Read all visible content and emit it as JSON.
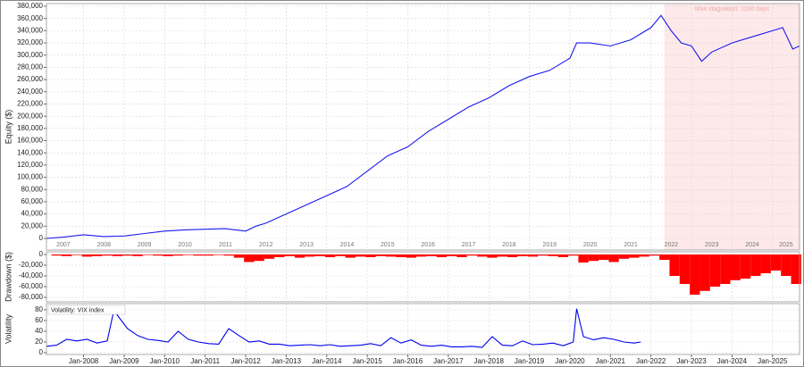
{
  "chart_data": [
    {
      "type": "line",
      "y_label": "Equity ($)",
      "xlim": [
        "2007-02",
        "2025-09"
      ],
      "ylim": [
        0,
        380000
      ],
      "yticks": [
        0,
        {
          "value": 20000,
          "label": "20,000"
        },
        {
          "value": 40000,
          "label": "40,000"
        },
        {
          "value": 60000,
          "label": "60,000"
        },
        {
          "value": 80000,
          "label": "80,000"
        },
        {
          "value": 100000,
          "label": "100,000"
        },
        {
          "value": 120000,
          "label": "120,000"
        },
        {
          "value": 140000,
          "label": "140,000"
        },
        {
          "value": 160000,
          "label": "160,000"
        },
        {
          "value": 180000,
          "label": "180,000"
        },
        {
          "value": 200000,
          "label": "200,000"
        },
        {
          "value": 220000,
          "label": "220,000"
        },
        {
          "value": 240000,
          "label": "240,000"
        },
        {
          "value": 260000,
          "label": "260,000"
        },
        {
          "value": 280000,
          "label": "280,000"
        },
        {
          "value": 300000,
          "label": "300,000"
        },
        {
          "value": 320000,
          "label": "320,000"
        },
        {
          "value": 340000,
          "label": "340,000"
        },
        {
          "value": 360000,
          "label": "360,000"
        },
        {
          "value": 380000,
          "label": "380,000"
        }
      ],
      "xticks": [
        {
          "value": "2007-07",
          "label": "2007"
        },
        {
          "value": "2008-07",
          "label": "2008"
        },
        {
          "value": "2009-07",
          "label": "2009"
        },
        {
          "value": "2010-07",
          "label": "2010"
        },
        {
          "value": "2011-07",
          "label": "2011"
        },
        {
          "value": "2012-07",
          "label": "2012"
        },
        {
          "value": "2013-07",
          "label": "2013"
        },
        {
          "value": "2014-07",
          "label": "2014"
        },
        {
          "value": "2015-07",
          "label": "2015"
        },
        {
          "value": "2016-07",
          "label": "2016"
        },
        {
          "value": "2017-07",
          "label": "2017"
        },
        {
          "value": "2018-07",
          "label": "2018"
        },
        {
          "value": "2019-07",
          "label": "2019"
        },
        {
          "value": "2020-07",
          "label": "2020"
        },
        {
          "value": "2021-07",
          "label": "2021"
        },
        {
          "value": "2022-07",
          "label": "2022"
        },
        {
          "value": "2023-07",
          "label": "2023"
        },
        {
          "value": "2024-07",
          "label": "2024"
        },
        {
          "value": "2025-05",
          "label": "2025"
        }
      ],
      "stagnation": {
        "start": "2022-05",
        "end": "2025-09",
        "label": "Max stagnation: 1100 days",
        "color": "#fde9e9"
      },
      "series": [
        {
          "color": "#1a1aee",
          "x": [
            "2007-02",
            "2007-07",
            "2008-01",
            "2008-07",
            "2009-01",
            "2009-07",
            "2010-01",
            "2010-07",
            "2011-01",
            "2011-07",
            "2012-01",
            "2012-04",
            "2012-07",
            "2013-01",
            "2013-07",
            "2014-01",
            "2014-07",
            "2015-01",
            "2015-07",
            "2016-01",
            "2016-07",
            "2017-01",
            "2017-07",
            "2018-01",
            "2018-07",
            "2019-01",
            "2019-07",
            "2020-01",
            "2020-03",
            "2020-07",
            "2021-01",
            "2021-07",
            "2022-01",
            "2022-04",
            "2022-07",
            "2022-10",
            "2023-01",
            "2023-04",
            "2023-07",
            "2024-01",
            "2024-07",
            "2025-01",
            "2025-04",
            "2025-07",
            "2025-09"
          ],
          "values": [
            0,
            2000,
            6000,
            3000,
            4000,
            8000,
            12000,
            14000,
            15000,
            16000,
            12000,
            20000,
            25000,
            40000,
            55000,
            70000,
            85000,
            110000,
            135000,
            150000,
            175000,
            195000,
            215000,
            230000,
            250000,
            265000,
            275000,
            295000,
            320000,
            320000,
            315000,
            325000,
            345000,
            365000,
            340000,
            320000,
            315000,
            290000,
            305000,
            320000,
            330000,
            340000,
            345000,
            310000,
            315000
          ]
        }
      ]
    },
    {
      "type": "bar",
      "y_label": "Drawdown ($)",
      "xlim": [
        "2007-02",
        "2025-09"
      ],
      "ylim": [
        -80000,
        0
      ],
      "yticks": [
        0,
        {
          "value": -20000,
          "label": "-20,000"
        },
        {
          "value": -40000,
          "label": "-40,000"
        },
        {
          "value": -60000,
          "label": "-60,000"
        },
        {
          "value": -80000,
          "label": "-80,000"
        }
      ],
      "color": "#ff0000",
      "x": [
        "2007-05",
        "2007-08",
        "2007-11",
        "2008-02",
        "2008-05",
        "2008-08",
        "2008-11",
        "2009-02",
        "2009-05",
        "2009-08",
        "2009-11",
        "2010-02",
        "2010-05",
        "2010-08",
        "2010-11",
        "2011-02",
        "2011-05",
        "2011-08",
        "2011-11",
        "2012-02",
        "2012-05",
        "2012-08",
        "2012-11",
        "2013-02",
        "2013-05",
        "2013-08",
        "2013-11",
        "2014-02",
        "2014-05",
        "2014-08",
        "2014-11",
        "2015-02",
        "2015-05",
        "2015-08",
        "2015-11",
        "2016-02",
        "2016-05",
        "2016-08",
        "2016-11",
        "2017-02",
        "2017-05",
        "2017-08",
        "2017-11",
        "2018-02",
        "2018-05",
        "2018-08",
        "2018-11",
        "2019-02",
        "2019-05",
        "2019-08",
        "2019-11",
        "2020-02",
        "2020-05",
        "2020-08",
        "2020-11",
        "2021-02",
        "2021-05",
        "2021-08",
        "2021-11",
        "2022-02",
        "2022-05",
        "2022-08",
        "2022-11",
        "2023-02",
        "2023-05",
        "2023-08",
        "2023-11",
        "2024-02",
        "2024-05",
        "2024-08",
        "2024-11",
        "2025-02",
        "2025-05",
        "2025-08"
      ],
      "values": [
        -2000,
        -3000,
        -1000,
        -4000,
        -3000,
        -2000,
        -3000,
        -2000,
        -3000,
        -1000,
        -2000,
        -3000,
        -2000,
        -1000,
        -2000,
        -2000,
        -1000,
        -2000,
        -6000,
        -14000,
        -12000,
        -8000,
        -5000,
        -3000,
        -6000,
        -4000,
        -3000,
        -5000,
        -3000,
        -6000,
        -4000,
        -5000,
        -3000,
        -4000,
        -5000,
        -6000,
        -4000,
        -3000,
        -5000,
        -3000,
        -5000,
        -2000,
        -4000,
        -6000,
        -4000,
        -5000,
        -3000,
        -4000,
        -2000,
        -3000,
        -5000,
        -2000,
        -15000,
        -12000,
        -10000,
        -14000,
        -8000,
        -6000,
        -4000,
        -2000,
        -10000,
        -40000,
        -55000,
        -75000,
        -68000,
        -60000,
        -55000,
        -48000,
        -45000,
        -40000,
        -35000,
        -30000,
        -40000,
        -55000
      ]
    },
    {
      "type": "line",
      "y_label": "Volatility",
      "xlim": [
        "2007-02",
        "2025-09"
      ],
      "ylim": [
        0,
        80
      ],
      "yticks": [
        0,
        20,
        40,
        60,
        80
      ],
      "xticks": [
        {
          "value": "2008-01",
          "label": "Jan-2008"
        },
        {
          "value": "2009-01",
          "label": "Jan-2009"
        },
        {
          "value": "2010-01",
          "label": "Jan-2010"
        },
        {
          "value": "2011-01",
          "label": "Jan-2011"
        },
        {
          "value": "2012-01",
          "label": "Jan-2012"
        },
        {
          "value": "2013-01",
          "label": "Jan-2013"
        },
        {
          "value": "2014-01",
          "label": "Jan-2014"
        },
        {
          "value": "2015-01",
          "label": "Jan-2015"
        },
        {
          "value": "2016-01",
          "label": "Jan-2016"
        },
        {
          "value": "2017-01",
          "label": "Jan-2017"
        },
        {
          "value": "2018-01",
          "label": "Jan-2018"
        },
        {
          "value": "2019-01",
          "label": "Jan-2019"
        },
        {
          "value": "2020-01",
          "label": "Jan-2020"
        },
        {
          "value": "2021-01",
          "label": "Jan-2021"
        },
        {
          "value": "2022-01",
          "label": "Jan-2022"
        },
        {
          "value": "2023-01",
          "label": "Jan-2023"
        },
        {
          "value": "2024-01",
          "label": "Jan-2024"
        },
        {
          "value": "2025-01",
          "label": "Jan-2025"
        }
      ],
      "series": [
        {
          "name": "Volatility: VIX index",
          "color": "#0000ee",
          "x": [
            "2007-02",
            "2007-05",
            "2007-08",
            "2007-11",
            "2008-02",
            "2008-05",
            "2008-08",
            "2008-10",
            "2008-11",
            "2009-02",
            "2009-05",
            "2009-08",
            "2009-11",
            "2010-02",
            "2010-05",
            "2010-08",
            "2010-11",
            "2011-02",
            "2011-05",
            "2011-08",
            "2011-11",
            "2012-02",
            "2012-05",
            "2012-08",
            "2012-11",
            "2013-02",
            "2013-05",
            "2013-08",
            "2013-11",
            "2014-02",
            "2014-05",
            "2014-08",
            "2014-11",
            "2015-02",
            "2015-05",
            "2015-08",
            "2015-11",
            "2016-02",
            "2016-05",
            "2016-08",
            "2016-11",
            "2017-02",
            "2017-05",
            "2017-08",
            "2017-11",
            "2018-02",
            "2018-05",
            "2018-08",
            "2018-11",
            "2019-02",
            "2019-05",
            "2019-08",
            "2019-11",
            "2020-02",
            "2020-03",
            "2020-05",
            "2020-08",
            "2020-11",
            "2021-02",
            "2021-05",
            "2021-08",
            "2021-10"
          ],
          "values": [
            12,
            14,
            25,
            22,
            25,
            18,
            22,
            80,
            70,
            45,
            32,
            25,
            23,
            20,
            40,
            25,
            20,
            17,
            16,
            45,
            32,
            20,
            22,
            16,
            16,
            13,
            14,
            15,
            13,
            15,
            12,
            13,
            14,
            17,
            13,
            28,
            18,
            24,
            14,
            12,
            14,
            11,
            11,
            12,
            10,
            30,
            14,
            13,
            22,
            15,
            16,
            18,
            13,
            20,
            82,
            30,
            24,
            28,
            25,
            20,
            18,
            20
          ]
        }
      ]
    }
  ]
}
